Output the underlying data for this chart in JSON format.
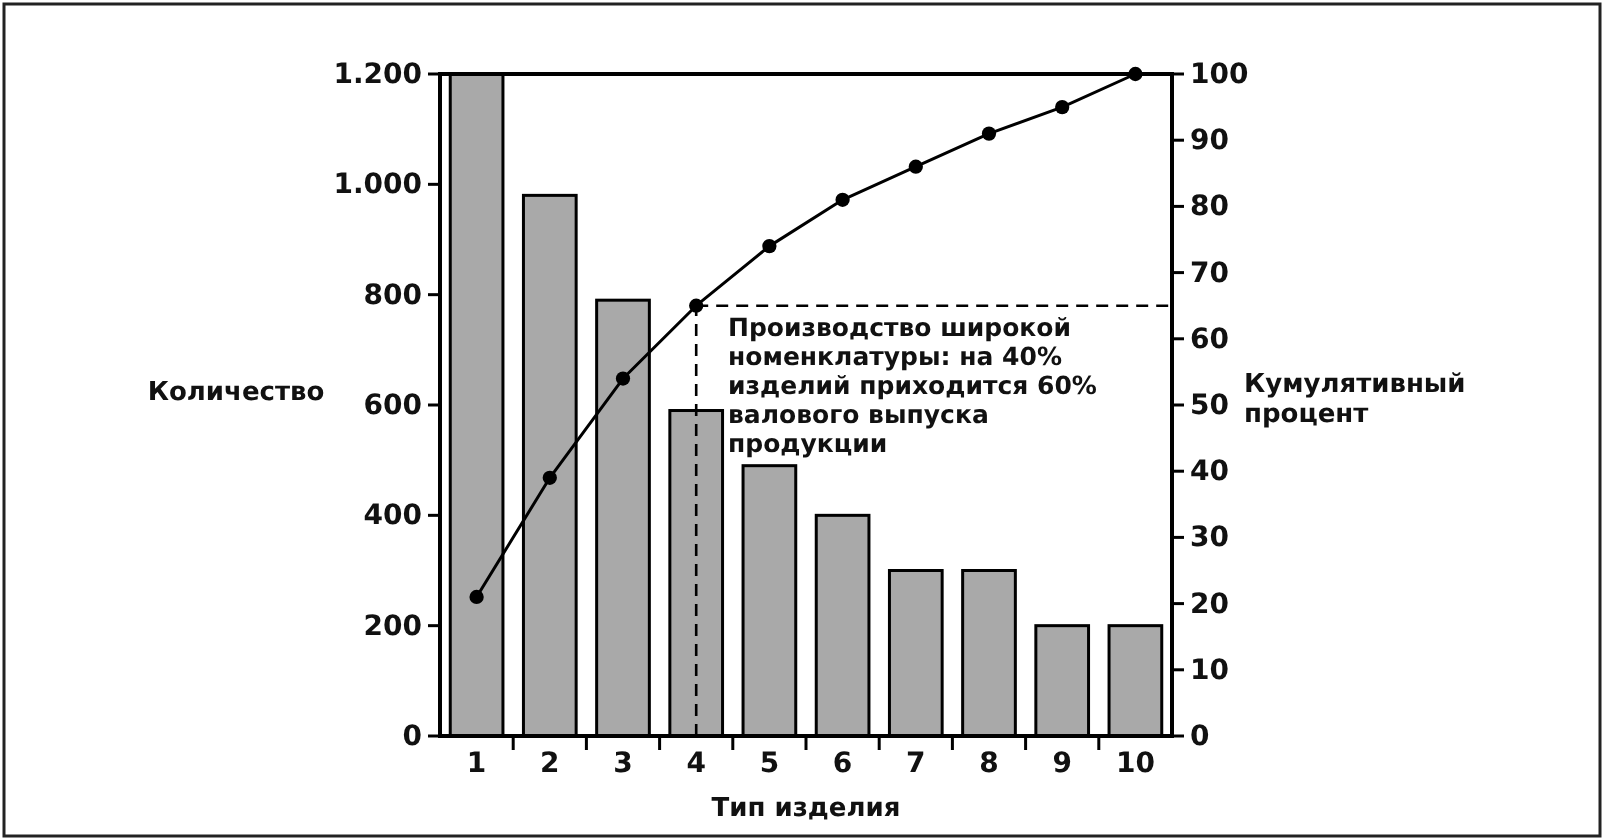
{
  "chart_data": {
    "type": "bar",
    "xlabel": "Тип изделия",
    "ylabel": "Количество",
    "y2label": "Кумулятивный процент",
    "categories": [
      "1",
      "2",
      "3",
      "4",
      "5",
      "6",
      "7",
      "8",
      "9",
      "10"
    ],
    "series": [
      {
        "color": "#a9a9a9",
        "values": [
          1200,
          980,
          790,
          590,
          490,
          400,
          300,
          300,
          200,
          200
        ]
      },
      {
        "type": "line",
        "axis": "y2",
        "color": "#000000",
        "marker": "circle",
        "values": [
          21,
          39,
          54,
          65,
          74,
          81,
          86,
          91,
          95,
          100
        ]
      }
    ],
    "ylim": [
      0,
      1200
    ],
    "yticks": [
      0,
      200,
      400,
      600,
      800,
      {
        "value": 1000,
        "label": "1.000"
      },
      {
        "value": 1200,
        "label": "1.200"
      }
    ],
    "y2lim": [
      0,
      100
    ],
    "y2ticks": [
      0,
      10,
      20,
      30,
      40,
      50,
      60,
      70,
      80,
      90,
      100
    ],
    "ref_lines": [
      {
        "axis": "x",
        "value": "4",
        "line_style": "dashed"
      },
      {
        "axis": "y2",
        "value": 65,
        "line_style": "dashed"
      }
    ],
    "annotations": [
      "Производство широкой\nноменклатуры: на 40%\nизделий приходится 60%\nвалового выпуска\nпродукции"
    ],
    "grid": false
  }
}
